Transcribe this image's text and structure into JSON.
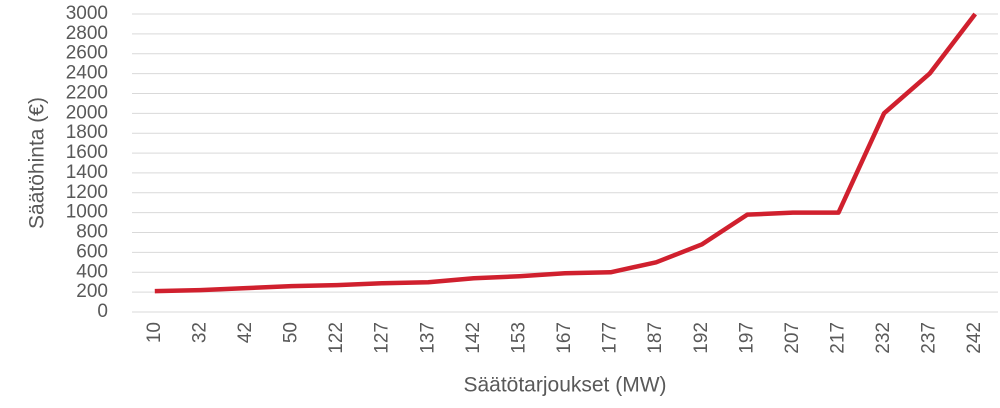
{
  "chart_data": {
    "type": "line",
    "x_label": "Säätötarjoukset (MW)",
    "y_label": "Säätöhinta (€)",
    "categories": [
      "10",
      "32",
      "42",
      "50",
      "122",
      "127",
      "137",
      "142",
      "153",
      "167",
      "177",
      "187",
      "192",
      "197",
      "207",
      "217",
      "232",
      "237",
      "242"
    ],
    "series": [
      {
        "name": "Säätöhinta",
        "color": "#d0202e",
        "values": [
          210,
          220,
          240,
          260,
          270,
          290,
          300,
          340,
          360,
          390,
          400,
          500,
          680,
          980,
          1000,
          1000,
          2000,
          2400,
          3000
        ]
      }
    ],
    "ylim": [
      0,
      3000
    ],
    "yticks": [
      0,
      200,
      400,
      600,
      800,
      1000,
      1200,
      1400,
      1600,
      1800,
      2000,
      2200,
      2400,
      2600,
      2800,
      3000
    ],
    "grid": true
  }
}
